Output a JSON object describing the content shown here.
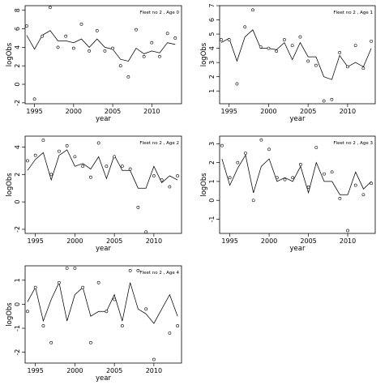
{
  "chart_data": [
    {
      "type": "scatter+line",
      "title": "Fleet no 2 , Age 0",
      "xlabel": "year",
      "ylabel": "logObs",
      "xlim": [
        1993.8,
        2013.8
      ],
      "ylim": [
        -2.1,
        8.5
      ],
      "xticks": [
        1995,
        2000,
        2005,
        2010
      ],
      "yticks": [
        -2,
        0,
        2,
        4,
        6,
        8
      ],
      "observed": {
        "x": [
          1994,
          1995,
          1996,
          1997,
          1998,
          1999,
          2000,
          2001,
          2002,
          2003,
          2004,
          2005,
          2006,
          2007,
          2008,
          2009,
          2010,
          2011,
          2012,
          2013
        ],
        "y": [
          6.3,
          -1.6,
          5.2,
          8.3,
          4.0,
          5.2,
          3.9,
          6.5,
          3.6,
          5.8,
          3.6,
          3.9,
          2.0,
          0.8,
          5.9,
          3.0,
          4.5,
          3.0,
          5.5,
          5.0
        ]
      },
      "fitted": {
        "x": [
          1994,
          1995,
          1996,
          1997,
          1998,
          1999,
          2000,
          2001,
          2002,
          2003,
          2004,
          2005,
          2006,
          2007,
          2008,
          2009,
          2010,
          2011,
          2012,
          2013
        ],
        "y": [
          5.3,
          3.8,
          5.3,
          5.8,
          4.7,
          4.7,
          4.5,
          4.9,
          4.0,
          4.9,
          4.0,
          3.8,
          2.7,
          2.5,
          3.9,
          3.3,
          3.6,
          3.4,
          4.5,
          4.3
        ]
      }
    },
    {
      "type": "scatter+line",
      "title": "Fleet no 2 , Age 1",
      "xlabel": "year",
      "ylabel": "logObs",
      "xlim": [
        1993.8,
        2013.5
      ],
      "ylim": [
        0.1,
        7.0
      ],
      "xticks": [
        1995,
        2000,
        2005,
        2010
      ],
      "yticks": [
        1,
        2,
        3,
        4,
        5,
        6,
        7
      ],
      "observed": {
        "x": [
          1994,
          1995,
          1996,
          1997,
          1998,
          1999,
          2000,
          2001,
          2002,
          2003,
          2004,
          2005,
          2006,
          2007,
          2008,
          2009,
          2010,
          2011,
          2012,
          2013
        ],
        "y": [
          4.6,
          4.6,
          1.5,
          5.5,
          6.7,
          4.1,
          4.0,
          3.8,
          4.6,
          4.2,
          4.8,
          3.1,
          2.8,
          0.3,
          0.4,
          3.7,
          2.7,
          4.2,
          2.6,
          4.5
        ]
      },
      "fitted": {
        "x": [
          1994,
          1995,
          1996,
          1997,
          1998,
          1999,
          2000,
          2001,
          2002,
          2003,
          2004,
          2005,
          2006,
          2007,
          2008,
          2009,
          2010,
          2011,
          2012,
          2013
        ],
        "y": [
          4.4,
          4.7,
          3.1,
          4.8,
          5.3,
          4.0,
          4.0,
          3.9,
          4.4,
          3.2,
          4.4,
          3.4,
          3.4,
          2.0,
          1.8,
          3.5,
          2.7,
          3.0,
          2.7,
          4.0
        ]
      }
    },
    {
      "type": "scatter+line",
      "title": "Fleet no 2 , Age 2",
      "xlabel": "year",
      "ylabel": "logObs",
      "xlim": [
        1993.7,
        2013.5
      ],
      "ylim": [
        -2.3,
        4.8
      ],
      "xticks": [
        1995,
        2000,
        2005,
        2010
      ],
      "yticks": [
        -2,
        0,
        2,
        4
      ],
      "observed": {
        "x": [
          1994,
          1995,
          1996,
          1997,
          1998,
          1999,
          2000,
          2001,
          2002,
          2003,
          2004,
          2005,
          2006,
          2007,
          2008,
          2009,
          2010,
          2011,
          2012,
          2013
        ],
        "y": [
          3.0,
          3.4,
          4.5,
          2.0,
          3.7,
          4.1,
          3.3,
          2.6,
          1.8,
          4.3,
          2.6,
          3.3,
          2.6,
          2.4,
          -0.4,
          -2.2,
          1.9,
          1.6,
          1.1,
          1.9
        ]
      },
      "fitted": {
        "x": [
          1994,
          1995,
          1996,
          1997,
          1998,
          1999,
          2000,
          2001,
          2002,
          2003,
          2004,
          2005,
          2006,
          2007,
          2008,
          2009,
          2010,
          2011,
          2012,
          2013
        ],
        "y": [
          2.3,
          3.1,
          3.6,
          1.6,
          3.4,
          3.8,
          2.6,
          2.8,
          2.4,
          3.3,
          1.7,
          3.4,
          2.3,
          2.3,
          1.0,
          1.0,
          2.6,
          1.4,
          1.9,
          1.6
        ]
      }
    },
    {
      "type": "scatter+line",
      "title": "Fleet no 2 , Age 3",
      "xlabel": "year",
      "ylabel": "logObs",
      "xlim": [
        1993.7,
        2013.5
      ],
      "ylim": [
        -1.75,
        3.4
      ],
      "xticks": [
        1995,
        2000,
        2005,
        2010
      ],
      "yticks": [
        -1,
        0,
        1,
        2,
        3
      ],
      "observed": {
        "x": [
          1994,
          1995,
          1996,
          1997,
          1998,
          1999,
          2000,
          2001,
          2002,
          2003,
          2004,
          2005,
          2006,
          2007,
          2008,
          2009,
          2010,
          2011,
          2012,
          2013
        ],
        "y": [
          2.9,
          1.2,
          2.0,
          2.5,
          0.0,
          3.2,
          2.7,
          1.2,
          1.1,
          1.2,
          1.9,
          0.7,
          2.8,
          1.4,
          1.5,
          0.1,
          -1.6,
          0.8,
          0.3,
          0.9
        ]
      },
      "fitted": {
        "x": [
          1994,
          1995,
          1996,
          1997,
          1998,
          1999,
          2000,
          2001,
          2002,
          2003,
          2004,
          2005,
          2006,
          2007,
          2008,
          2009,
          2010,
          2011,
          2012,
          2013
        ],
        "y": [
          2.2,
          0.8,
          1.7,
          2.4,
          0.4,
          1.8,
          2.2,
          1.0,
          1.2,
          1.0,
          1.8,
          0.4,
          2.0,
          1.0,
          1.0,
          0.3,
          0.3,
          1.5,
          0.6,
          1.0
        ]
      }
    },
    {
      "type": "scatter+line",
      "title": "Fleet no 2 , Age 4",
      "xlabel": "year",
      "ylabel": "logObs",
      "xlim": [
        1993.7,
        2013.5
      ],
      "ylim": [
        -2.45,
        1.6
      ],
      "xticks": [
        1995,
        2000,
        2005,
        2010
      ],
      "yticks": [
        -2,
        -1,
        0,
        1
      ],
      "observed": {
        "x": [
          1994,
          1995,
          1996,
          1997,
          1998,
          1999,
          2000,
          2001,
          2002,
          2003,
          2004,
          2005,
          2006,
          2007,
          2008,
          2009,
          2010,
          2011,
          2012,
          2013
        ],
        "y": [
          -0.3,
          0.7,
          -0.9,
          -1.6,
          0.9,
          1.5,
          1.5,
          0.7,
          -1.6,
          0.9,
          -0.3,
          0.2,
          -0.9,
          1.4,
          1.4,
          -0.2,
          -2.3,
          null,
          -1.2,
          -0.9
        ]
      },
      "fitted": {
        "x": [
          1994,
          1995,
          1996,
          1997,
          1998,
          1999,
          2000,
          2001,
          2002,
          2003,
          2004,
          2005,
          2006,
          2007,
          2008,
          2009,
          2010,
          2011,
          2012,
          2013
        ],
        "y": [
          0.1,
          0.7,
          -0.7,
          0.2,
          0.9,
          -0.7,
          0.4,
          0.7,
          -0.5,
          -0.3,
          -0.3,
          0.4,
          -0.7,
          0.9,
          -0.2,
          -0.4,
          -0.8,
          -0.2,
          0.4,
          -0.5
        ]
      }
    }
  ]
}
